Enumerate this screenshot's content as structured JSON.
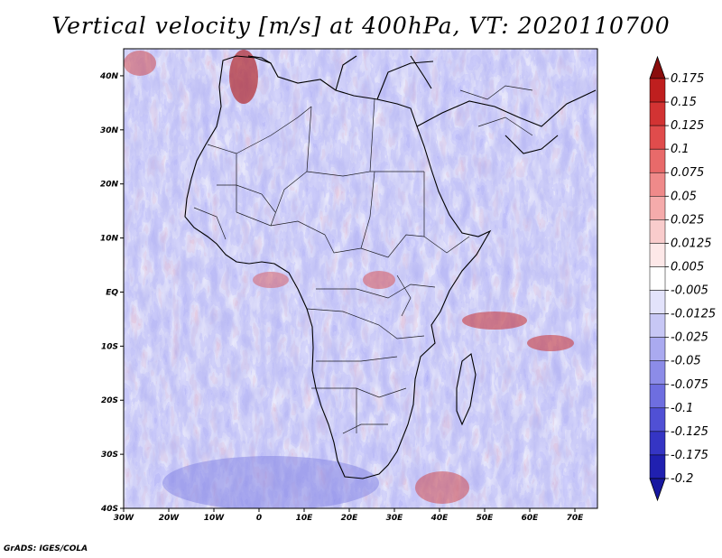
{
  "title": "Vertical velocity [m/s] at 400hPa, VT: 2020110700",
  "credit": "GrADS: IGES/COLA",
  "map": {
    "variable": "Vertical velocity",
    "units": "m/s",
    "level": "400hPa",
    "valid_time": "2020110700",
    "lon_range": [
      -30,
      75
    ],
    "lat_range": [
      -40,
      45
    ],
    "lon_ticks": [
      {
        "value": -30,
        "label": "30W"
      },
      {
        "value": -20,
        "label": "20W"
      },
      {
        "value": -10,
        "label": "10W"
      },
      {
        "value": 0,
        "label": "0"
      },
      {
        "value": 10,
        "label": "10E"
      },
      {
        "value": 20,
        "label": "20E"
      },
      {
        "value": 30,
        "label": "30E"
      },
      {
        "value": 40,
        "label": "40E"
      },
      {
        "value": 50,
        "label": "50E"
      },
      {
        "value": 60,
        "label": "60E"
      },
      {
        "value": 70,
        "label": "70E"
      }
    ],
    "lat_ticks": [
      {
        "value": 40,
        "label": "40N"
      },
      {
        "value": 30,
        "label": "30N"
      },
      {
        "value": 20,
        "label": "20N"
      },
      {
        "value": 10,
        "label": "10N"
      },
      {
        "value": 0,
        "label": "EQ"
      },
      {
        "value": -10,
        "label": "10S"
      },
      {
        "value": -20,
        "label": "20S"
      },
      {
        "value": -30,
        "label": "30S"
      },
      {
        "value": -40,
        "label": "40S"
      }
    ]
  },
  "colorbar": {
    "levels": [
      {
        "label": "0.175",
        "color": "#a01616"
      },
      {
        "label": "0.15",
        "color": "#bf1f1f"
      },
      {
        "label": "0.125",
        "color": "#d23333"
      },
      {
        "label": "0.1",
        "color": "#e04c4c"
      },
      {
        "label": "0.075",
        "color": "#e86a6a"
      },
      {
        "label": "0.05",
        "color": "#ef8a8a"
      },
      {
        "label": "0.025",
        "color": "#f5abab"
      },
      {
        "label": "0.0125",
        "color": "#f9cccc"
      },
      {
        "label": "0.005",
        "color": "#fde8e8"
      },
      {
        "label": "-0.005",
        "color": "#ffffff"
      },
      {
        "label": "-0.0125",
        "color": "#e3e3fb"
      },
      {
        "label": "-0.025",
        "color": "#c7c7f5"
      },
      {
        "label": "-0.05",
        "color": "#aaaaf0"
      },
      {
        "label": "-0.075",
        "color": "#8c8ce8"
      },
      {
        "label": "-0.1",
        "color": "#6e6ee0"
      },
      {
        "label": "-0.125",
        "color": "#5050d5"
      },
      {
        "label": "-0.175",
        "color": "#3535c4"
      },
      {
        "label": "-0.2",
        "color": "#2020b0"
      }
    ],
    "top_arrow_color": "#8a0d0d",
    "bottom_arrow_color": "#1818a0"
  }
}
